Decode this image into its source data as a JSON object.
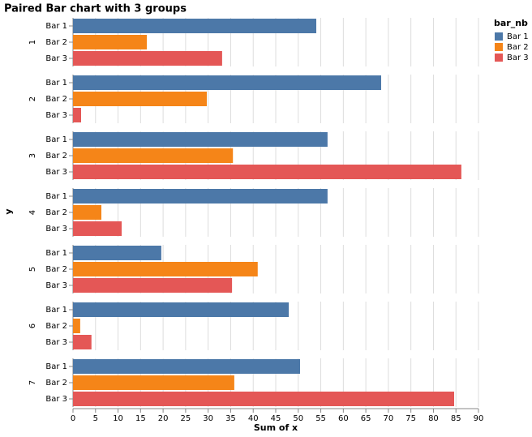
{
  "chart_data": {
    "type": "bar",
    "title": "Paired Bar chart with 3 groups",
    "x_label": "Sum of x",
    "y_label": "y",
    "legend_title": "bar_nb",
    "groups": [
      "1",
      "2",
      "3",
      "4",
      "5",
      "6",
      "7"
    ],
    "series": [
      {
        "name": "Bar 1",
        "color": "#4c78a8",
        "values": [
          54,
          68.4,
          56.5,
          56.5,
          19.6,
          47.9,
          50.4
        ]
      },
      {
        "name": "Bar 2",
        "color": "#f58518",
        "values": [
          16.4,
          29.7,
          35.5,
          6.3,
          41,
          1.6,
          35.8
        ]
      },
      {
        "name": "Bar 3",
        "color": "#e45756",
        "values": [
          33.1,
          1.8,
          86.2,
          10.8,
          35.3,
          4.1,
          84.6
        ]
      }
    ],
    "xlim": [
      0,
      90
    ],
    "xticks": [
      0,
      5,
      10,
      15,
      20,
      25,
      30,
      35,
      40,
      45,
      50,
      55,
      60,
      65,
      70,
      75,
      80,
      85,
      90
    ],
    "grid": true
  }
}
